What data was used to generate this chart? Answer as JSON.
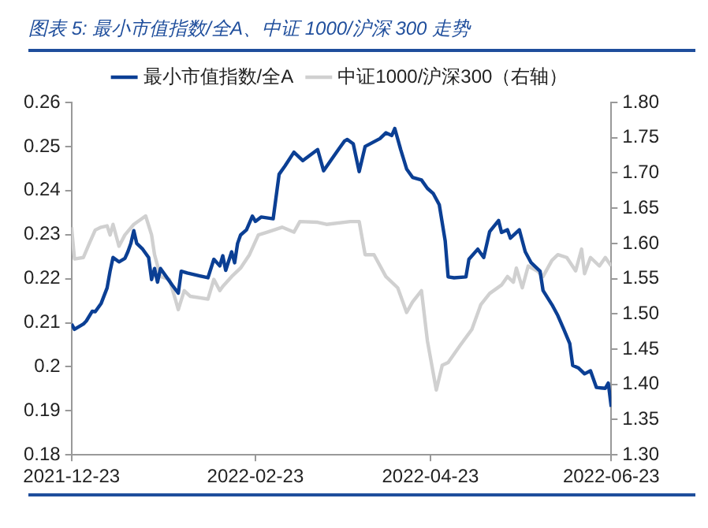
{
  "chart_data": {
    "type": "line",
    "title": "图表 5: 最小市值指数/全A、中证 1000/沪深 300 走势",
    "legend": "top",
    "grid": false,
    "marker": "none",
    "line_style": "solid",
    "xlim": [
      "2021-12-23",
      "2022-06-23"
    ],
    "xticks": [
      "2021-12-23",
      "2022-02-23",
      "2022-04-23",
      "2022-06-23"
    ],
    "ylim": [
      0.18,
      0.26
    ],
    "yticks": [
      0.18,
      0.19,
      0.2,
      0.21,
      0.22,
      0.23,
      0.24,
      0.25,
      0.26
    ],
    "y2lim": [
      1.3,
      1.8
    ],
    "y2ticks": [
      {
        "value": 1.3,
        "label": "1.30"
      },
      {
        "value": 1.35,
        "label": "1.35"
      },
      {
        "value": 1.4,
        "label": "1.40"
      },
      {
        "value": 1.45,
        "label": "1.45"
      },
      {
        "value": 1.5,
        "label": "1.50"
      },
      {
        "value": 1.55,
        "label": "1.55"
      },
      {
        "value": 1.6,
        "label": "1.60"
      },
      {
        "value": 1.65,
        "label": "1.65"
      },
      {
        "value": 1.7,
        "label": "1.70"
      },
      {
        "value": 1.75,
        "label": "1.75"
      },
      {
        "value": 1.8,
        "label": "1.80"
      }
    ],
    "series": [
      {
        "name": "最小市值指数/全A",
        "color": "#0b3f94",
        "x": [
          "2021-12-23",
          "2021-12-24",
          "2021-12-27",
          "2021-12-28",
          "2021-12-30",
          "2021-12-31",
          "2022-01-02",
          "2022-01-04",
          "2022-01-05",
          "2022-01-06",
          "2022-01-08",
          "2022-01-10",
          "2022-01-11",
          "2022-01-12",
          "2022-01-13",
          "2022-01-14",
          "2022-01-16",
          "2022-01-18",
          "2022-01-19",
          "2022-01-20",
          "2022-01-21",
          "2022-01-22",
          "2022-01-24",
          "2022-01-26",
          "2022-01-28",
          "2022-01-29",
          "2022-01-31",
          "2022-02-07",
          "2022-02-09",
          "2022-02-11",
          "2022-02-12",
          "2022-02-13",
          "2022-02-15",
          "2022-02-16",
          "2022-02-17",
          "2022-02-18",
          "2022-02-20",
          "2022-02-22",
          "2022-02-23",
          "2022-02-25",
          "2022-03-01",
          "2022-03-03",
          "2022-03-05",
          "2022-03-08",
          "2022-03-11",
          "2022-03-16",
          "2022-03-18",
          "2022-03-21",
          "2022-03-23",
          "2022-03-25",
          "2022-03-26",
          "2022-03-28",
          "2022-03-30",
          "2022-04-01",
          "2022-04-06",
          "2022-04-08",
          "2022-04-10",
          "2022-04-11",
          "2022-04-13",
          "2022-04-15",
          "2022-04-17",
          "2022-04-20",
          "2022-04-22",
          "2022-04-24",
          "2022-04-26",
          "2022-04-28",
          "2022-04-29",
          "2022-05-01",
          "2022-05-05",
          "2022-05-06",
          "2022-05-09",
          "2022-05-11",
          "2022-05-13",
          "2022-05-16",
          "2022-05-17",
          "2022-05-19",
          "2022-05-20",
          "2022-05-23",
          "2022-05-25",
          "2022-05-27",
          "2022-05-30",
          "2022-05-31",
          "2022-06-03",
          "2022-06-05",
          "2022-06-07",
          "2022-06-09",
          "2022-06-10",
          "2022-06-12",
          "2022-06-14",
          "2022-06-16",
          "2022-06-18",
          "2022-06-21",
          "2022-06-22",
          "2022-06-23"
        ],
        "values": [
          0.2097,
          0.2085,
          0.2097,
          0.2104,
          0.2126,
          0.2125,
          0.2144,
          0.2179,
          0.2217,
          0.2248,
          0.2238,
          0.2246,
          0.2261,
          0.228,
          0.2309,
          0.228,
          0.2267,
          0.2248,
          0.2198,
          0.2223,
          0.2192,
          0.2223,
          0.2204,
          0.2185,
          0.2167,
          0.2217,
          0.2213,
          0.2202,
          0.2244,
          0.2229,
          0.2252,
          0.2219,
          0.2261,
          0.2236,
          0.228,
          0.2299,
          0.2311,
          0.2342,
          0.233,
          0.234,
          0.2336,
          0.2437,
          0.2456,
          0.2487,
          0.2468,
          0.2493,
          0.2445,
          0.2474,
          0.2493,
          0.2512,
          0.2516,
          0.2506,
          0.2443,
          0.25,
          0.2518,
          0.2531,
          0.2525,
          0.2541,
          0.2493,
          0.2449,
          0.243,
          0.2424,
          0.2405,
          0.2393,
          0.2368,
          0.2286,
          0.2204,
          0.2202,
          0.2204,
          0.2244,
          0.2267,
          0.2248,
          0.2307,
          0.2332,
          0.2305,
          0.2311,
          0.2292,
          0.2311,
          0.2261,
          0.2236,
          0.2217,
          0.2173,
          0.2141,
          0.2116,
          0.2085,
          0.2053,
          0.2003,
          0.1997,
          0.1984,
          0.1991,
          0.1953,
          0.1951,
          0.1963,
          0.1909
        ]
      },
      {
        "name": "中证1000/沪深300（右轴）",
        "color": "#d0d0d0",
        "axis": "y2",
        "x": [
          "2021-12-23",
          "2021-12-24",
          "2021-12-27",
          "2021-12-29",
          "2021-12-31",
          "2022-01-02",
          "2022-01-04",
          "2022-01-05",
          "2022-01-06",
          "2022-01-08",
          "2022-01-10",
          "2022-01-11",
          "2022-01-13",
          "2022-01-17",
          "2022-01-19",
          "2022-01-20",
          "2022-01-22",
          "2022-01-25",
          "2022-01-27",
          "2022-01-28",
          "2022-01-30",
          "2022-02-01",
          "2022-02-07",
          "2022-02-09",
          "2022-02-11",
          "2022-02-12",
          "2022-02-15",
          "2022-02-18",
          "2022-02-21",
          "2022-02-24",
          "2022-02-27",
          "2022-03-04",
          "2022-03-08",
          "2022-03-10",
          "2022-03-16",
          "2022-03-19",
          "2022-03-27",
          "2022-03-30",
          "2022-04-01",
          "2022-04-04",
          "2022-04-08",
          "2022-04-12",
          "2022-04-15",
          "2022-04-17",
          "2022-04-20",
          "2022-04-22",
          "2022-04-25",
          "2022-04-27",
          "2022-04-29",
          "2022-05-03",
          "2022-05-07",
          "2022-05-10",
          "2022-05-13",
          "2022-05-17",
          "2022-05-19",
          "2022-05-21",
          "2022-05-22",
          "2022-05-24",
          "2022-05-26",
          "2022-05-29",
          "2022-05-31",
          "2022-06-03",
          "2022-06-05",
          "2022-06-08",
          "2022-06-11",
          "2022-06-13",
          "2022-06-14",
          "2022-06-16",
          "2022-06-19",
          "2022-06-21",
          "2022-06-23"
        ],
        "values": [
          1.623,
          1.578,
          1.58,
          1.6,
          1.619,
          1.623,
          1.625,
          1.612,
          1.627,
          1.596,
          1.612,
          1.617,
          1.627,
          1.639,
          1.612,
          1.584,
          1.553,
          1.549,
          1.521,
          1.506,
          1.533,
          1.525,
          1.521,
          1.549,
          1.533,
          1.539,
          1.553,
          1.565,
          1.584,
          1.612,
          1.616,
          1.623,
          1.616,
          1.631,
          1.63,
          1.627,
          1.631,
          1.631,
          1.584,
          1.584,
          1.553,
          1.537,
          1.502,
          1.517,
          1.533,
          1.462,
          1.392,
          1.427,
          1.431,
          1.455,
          1.478,
          1.513,
          1.529,
          1.541,
          1.553,
          1.545,
          1.565,
          1.537,
          1.568,
          1.561,
          1.553,
          1.576,
          1.584,
          1.58,
          1.561,
          1.592,
          1.557,
          1.58,
          1.568,
          1.58,
          1.568
        ]
      }
    ]
  }
}
